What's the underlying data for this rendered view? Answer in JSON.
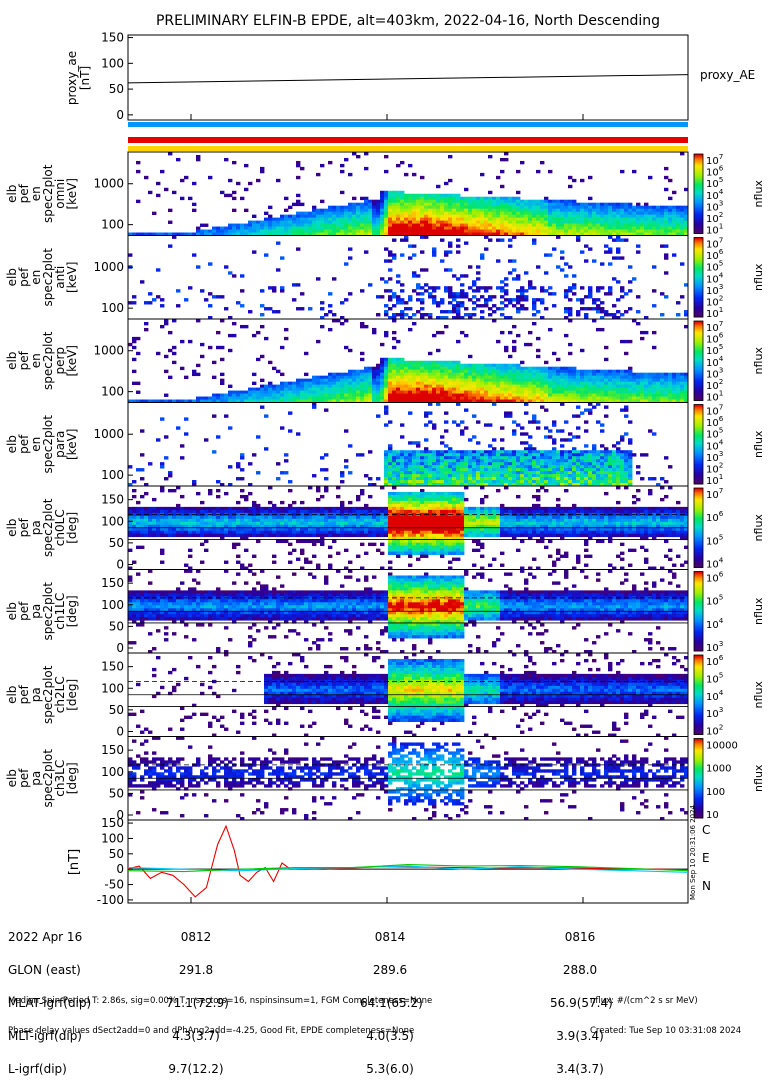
{
  "title": "PRELIMINARY ELFIN-B EPDE, alt=403km, 2022-04-16, North Descending",
  "chart_data": {
    "type": "heatmap",
    "date": "2022 Apr 16",
    "x_ticks": [
      "0812",
      "0814",
      "0816"
    ],
    "proxy_ae": {
      "ylabel_lines": [
        "proxy_ae",
        "[nT]"
      ],
      "legend": "proxy_AE",
      "yticks": [
        "150",
        "100",
        "50",
        "0"
      ],
      "ylim": [
        -10,
        155
      ],
      "x": [
        0,
        1
      ],
      "values": [
        62,
        78
      ]
    },
    "bars": [
      {
        "color": "#0096ff"
      },
      {
        "color": "#e60000"
      },
      {
        "color": "#ffd200"
      }
    ],
    "panels": [
      {
        "ylabel_lines": [
          "elb",
          "pef",
          "en",
          "spec2plot",
          "omni",
          "[keV]"
        ],
        "yticks": [
          "1000",
          "100"
        ],
        "kind": "en",
        "style": "omni",
        "cbar_ticks": [
          "10^7",
          "10^6",
          "10^5",
          "10^4",
          "10^3",
          "10^2",
          "10^1"
        ],
        "cbar_label": "nflux"
      },
      {
        "ylabel_lines": [
          "elb",
          "pef",
          "en",
          "spec2plot",
          "anti",
          "[keV]"
        ],
        "yticks": [
          "1000",
          "100"
        ],
        "kind": "en",
        "style": "anti",
        "cbar_ticks": [
          "10^7",
          "10^6",
          "10^5",
          "10^4",
          "10^3",
          "10^2",
          "10^1"
        ],
        "cbar_label": "nflux"
      },
      {
        "ylabel_lines": [
          "elb",
          "pef",
          "en",
          "spec2plot",
          "perp",
          "[keV]"
        ],
        "yticks": [
          "1000",
          "100"
        ],
        "kind": "en",
        "style": "perp",
        "cbar_ticks": [
          "10^7",
          "10^6",
          "10^5",
          "10^4",
          "10^3",
          "10^2",
          "10^1"
        ],
        "cbar_label": "nflux"
      },
      {
        "ylabel_lines": [
          "elb",
          "pef",
          "en",
          "spec2plot",
          "para",
          "[keV]"
        ],
        "yticks": [
          "1000",
          "100"
        ],
        "kind": "en",
        "style": "para",
        "cbar_ticks": [
          "10^7",
          "10^6",
          "10^5",
          "10^4",
          "10^3",
          "10^2",
          "10^1"
        ],
        "cbar_label": "nflux"
      },
      {
        "ylabel_lines": [
          "elb",
          "pef",
          "pa",
          "spec2plot",
          "ch0LC",
          "[deg]"
        ],
        "yticks": [
          "150",
          "100",
          "50",
          "0"
        ],
        "kind": "pa",
        "style": "ch0",
        "cbar_ticks": [
          "10^7",
          "10^6",
          "10^5",
          "10^4"
        ],
        "cbar_label": "nflux"
      },
      {
        "ylabel_lines": [
          "elb",
          "pef",
          "pa",
          "spec2plot",
          "ch1LC",
          "[deg]"
        ],
        "yticks": [
          "150",
          "100",
          "50",
          "0"
        ],
        "kind": "pa",
        "style": "ch1",
        "cbar_ticks": [
          "10^6",
          "10^5",
          "10^4",
          "10^3"
        ],
        "cbar_label": "nflux"
      },
      {
        "ylabel_lines": [
          "elb",
          "pef",
          "pa",
          "spec2plot",
          "ch2LC",
          "[deg]"
        ],
        "yticks": [
          "150",
          "100",
          "50",
          "0"
        ],
        "kind": "pa",
        "style": "ch2",
        "cbar_ticks": [
          "10^6",
          "10^5",
          "10^4",
          "10^3",
          "10^2"
        ],
        "cbar_label": "nflux"
      },
      {
        "ylabel_lines": [
          "elb",
          "pef",
          "pa",
          "spec2plot",
          "ch3LC",
          "[deg]"
        ],
        "yticks": [
          "150",
          "100",
          "50",
          "0"
        ],
        "kind": "pa",
        "style": "ch3",
        "cbar_ticks": [
          "10000",
          "1000",
          "100",
          "10"
        ],
        "cbar_label": "nflux"
      }
    ],
    "mag": {
      "ylabel": "[nT]",
      "yticks": [
        "150",
        "100",
        "50",
        "0",
        "-50",
        "-100"
      ],
      "ylim": [
        -110,
        160
      ],
      "legend": [
        {
          "name": "C",
          "color": "#00c8ff"
        },
        {
          "name": "E",
          "color": "#e60000"
        },
        {
          "name": "N",
          "color": "#00c800"
        }
      ],
      "series": [
        {
          "name": "E",
          "color": "#e60000",
          "x": [
            0,
            0.02,
            0.04,
            0.06,
            0.08,
            0.1,
            0.12,
            0.14,
            0.16,
            0.175,
            0.19,
            0.2,
            0.215,
            0.23,
            0.245,
            0.26,
            0.275,
            0.29,
            0.31,
            0.35,
            0.45,
            0.55,
            0.65,
            0.75,
            0.85,
            0.95,
            1.0
          ],
          "values": [
            2,
            10,
            -30,
            -10,
            -20,
            -50,
            -90,
            -60,
            80,
            140,
            60,
            -20,
            -40,
            -10,
            5,
            -40,
            20,
            0,
            2,
            0,
            8,
            6,
            4,
            5,
            2,
            0,
            -2
          ]
        },
        {
          "name": "C",
          "color": "#00c8ff",
          "x": [
            0,
            0.1,
            0.2,
            0.3,
            0.4,
            0.5,
            0.6,
            0.7,
            0.8,
            0.9,
            1.0
          ],
          "values": [
            5,
            0,
            -5,
            2,
            5,
            10,
            0,
            8,
            0,
            -5,
            -10
          ]
        },
        {
          "name": "N",
          "color": "#00c800",
          "x": [
            0,
            0.1,
            0.2,
            0.3,
            0.4,
            0.5,
            0.6,
            0.7,
            0.8,
            0.9,
            1.0
          ],
          "values": [
            -5,
            -8,
            0,
            5,
            5,
            15,
            10,
            12,
            8,
            2,
            -5
          ]
        }
      ]
    },
    "stamp": "Mon Sep 10 20:31:06 2024"
  },
  "footer": {
    "row_labels": [
      "2022 Apr 16",
      "GLON (east)",
      "MLAT-igrf(dip)",
      "MLT-igrf(dip)",
      "L-igrf(dip)"
    ],
    "columns": [
      [
        "0812",
        "291.8",
        "71.1(72.9)",
        "4.3(3.7)",
        "9.7(12.2)"
      ],
      [
        "0814",
        "289.6",
        "64.1(65.2)",
        "4.0(3.5)",
        "5.3(6.0)"
      ],
      [
        "0816",
        "288.0",
        "56.9(57.4)",
        "3.9(3.4)",
        "3.4(3.7)"
      ]
    ],
    "note1": "Median Spin Period T: 2.86s, sig=0.00% T, nsectors=16, nspinsinsum=1, FGM Completeness=None",
    "note2": "Phase delay values dSect2add=0 and dPhAng2add=-4.25, Good Fit, EPDE completeness=None",
    "right1": "nflux: #/(cm^2 s sr MeV)",
    "right2": "Created: Tue Sep 10 03:31:08 2024"
  }
}
